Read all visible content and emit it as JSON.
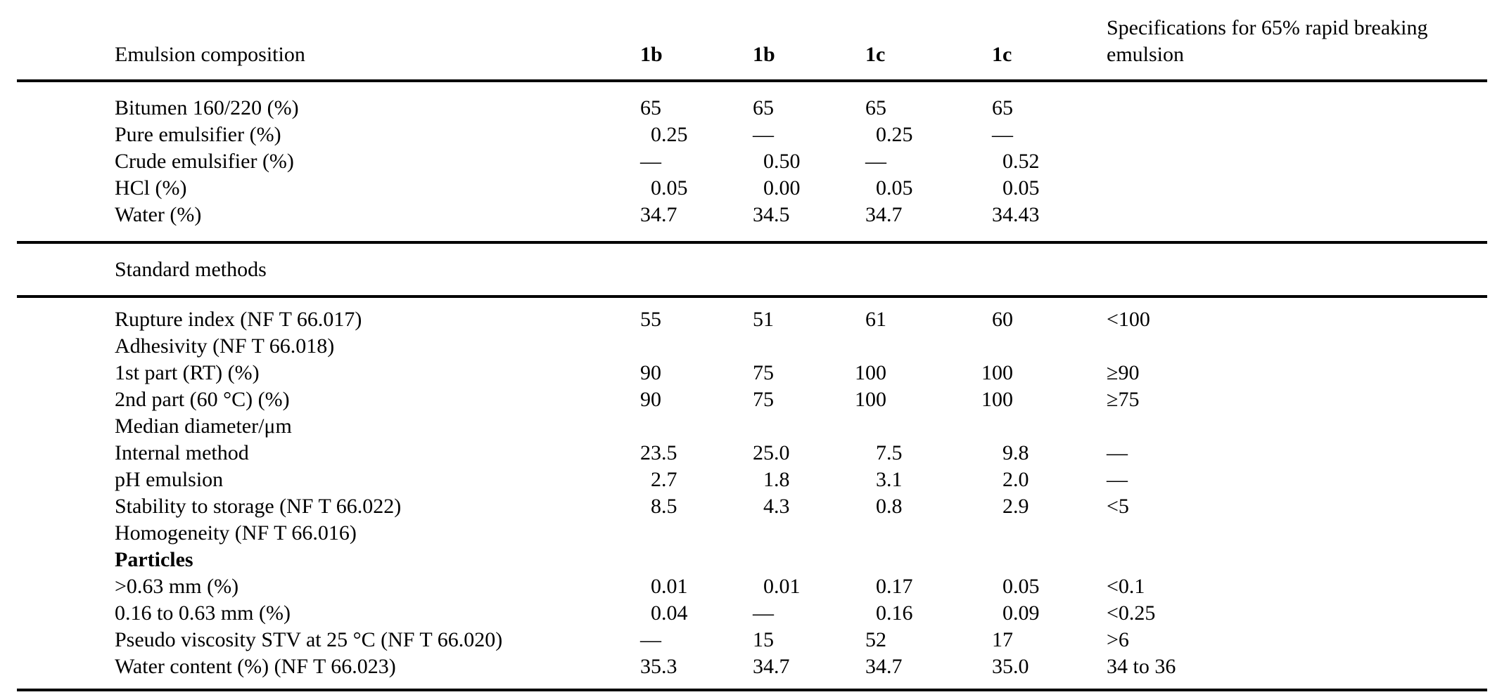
{
  "page": {
    "background": "#ffffff",
    "text_color": "#000000",
    "rule_color": "#000000"
  },
  "header": {
    "label": "Emulsion composition",
    "cols": [
      "1b",
      "1b",
      "1c",
      "1c"
    ],
    "spec": "Specifications for 65% rapid breaking emulsion"
  },
  "section_label": "Standard methods",
  "composition_rows": [
    {
      "label": "Bitumen 160/220 (%)",
      "values": [
        "65",
        "65",
        "65",
        "65"
      ],
      "spec": ""
    },
    {
      "label": "Pure emulsifier (%)",
      "values": [
        "0.25",
        "—",
        "0.25",
        "—"
      ],
      "spec": ""
    },
    {
      "label": "Crude emulsifier (%)",
      "values": [
        "—",
        "0.50",
        "—",
        "0.52"
      ],
      "spec": ""
    },
    {
      "label": "HCl (%)",
      "values": [
        "0.05",
        "0.00",
        "0.05",
        "0.05"
      ],
      "spec": ""
    },
    {
      "label": "Water (%)",
      "values": [
        "34.7",
        "34.5",
        "34.7",
        "34.43"
      ],
      "spec": ""
    }
  ],
  "methods_rows": [
    {
      "label": "Rupture index (NF T 66.017)",
      "values": [
        "55",
        "51",
        "61",
        "60"
      ],
      "spec": "<100"
    },
    {
      "label": "Adhesivity (NF T 66.018)",
      "values": [
        "",
        "",
        "",
        ""
      ],
      "spec": ""
    },
    {
      "label": "1st part (RT) (%)",
      "values": [
        "90",
        "75",
        "100",
        "100"
      ],
      "spec": "≥90"
    },
    {
      "label": "2nd part (60 °C) (%)",
      "values": [
        "90",
        "75",
        "100",
        "100"
      ],
      "spec": "≥75"
    },
    {
      "label": "Median diameter/μm",
      "values": [
        "",
        "",
        "",
        ""
      ],
      "spec": ""
    },
    {
      "label": "Internal method",
      "values": [
        "23.5",
        "25.0",
        "7.5",
        "9.8"
      ],
      "spec": "—"
    },
    {
      "label": "pH emulsion",
      "values": [
        "2.7",
        "1.8",
        "3.1",
        "2.0"
      ],
      "spec": "—"
    },
    {
      "label": "Stability to storage (NF T 66.022)",
      "values": [
        "8.5",
        "4.3",
        "0.8",
        "2.9"
      ],
      "spec": "<5"
    },
    {
      "label": "Homogeneity (NF T 66.016)",
      "values": [
        "",
        "",
        "",
        ""
      ],
      "spec": ""
    },
    {
      "label": "Particles",
      "bold": true,
      "values": [
        "",
        "",
        "",
        ""
      ],
      "spec": ""
    },
    {
      "label": ">0.63 mm (%)",
      "values": [
        "0.01",
        "0.01",
        "0.17",
        "0.05"
      ],
      "spec": "<0.1"
    },
    {
      "label": "0.16 to 0.63 mm (%)",
      "values": [
        "0.04",
        "—",
        "0.16",
        "0.09"
      ],
      "spec": "<0.25"
    },
    {
      "label": "Pseudo viscosity STV at 25 °C (NF T 66.020)",
      "values": [
        "—",
        "15",
        "52",
        "17"
      ],
      "spec": ">6"
    },
    {
      "label": "Water content (%) (NF T 66.023)",
      "values": [
        "35.3",
        "34.7",
        "34.7",
        "35.0"
      ],
      "spec": "34 to 36"
    }
  ]
}
